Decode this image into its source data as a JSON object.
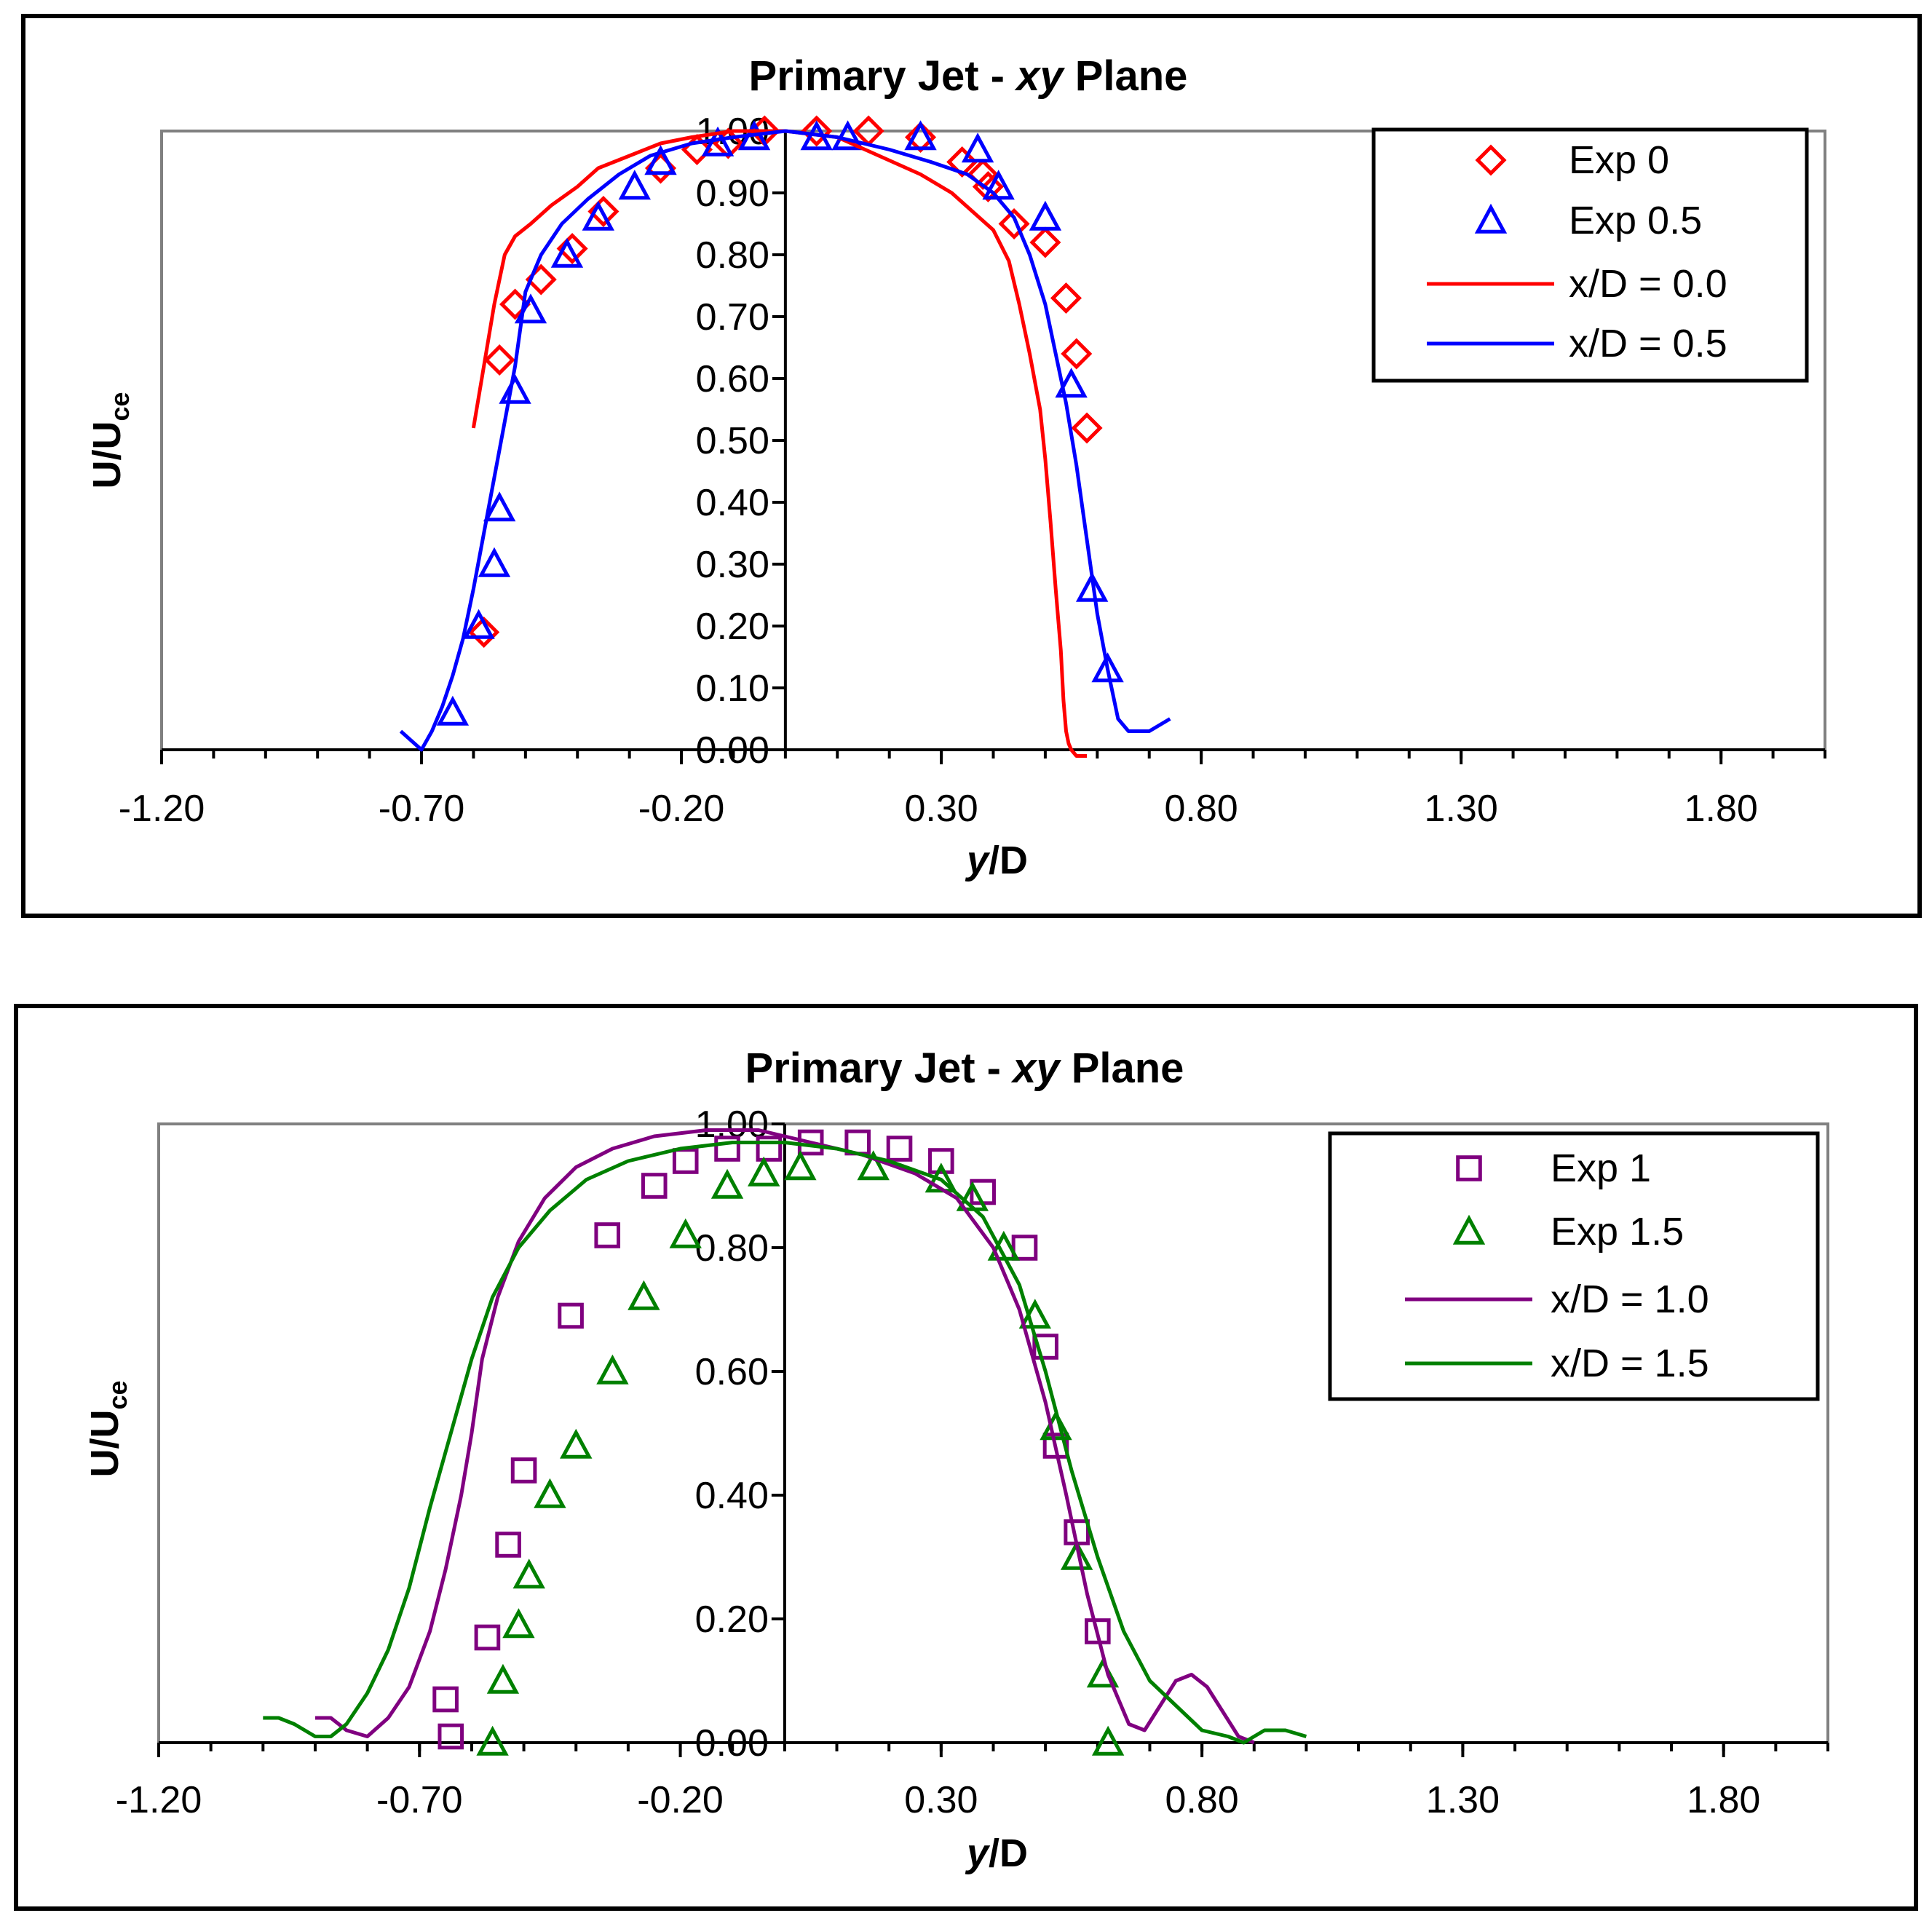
{
  "chart_data": [
    {
      "type": "line",
      "title": "Primary Jet - ",
      "title_italic": "xy",
      "title_suffix": " Plane",
      "xlabel_italic": "y",
      "xlabel_rest": "/D",
      "ylabel_main": "U/U",
      "ylabel_sub": "ce",
      "xlim": [
        -1.2,
        2.0
      ],
      "ylim": [
        0.0,
        1.0
      ],
      "x_ticks": [
        "-1.20",
        "-0.70",
        "-0.20",
        "0.30",
        "0.80",
        "1.30",
        "1.80"
      ],
      "x_tick_values": [
        -1.2,
        -0.7,
        -0.2,
        0.3,
        0.8,
        1.3,
        1.8
      ],
      "y_ticks": [
        "0.00",
        "0.10",
        "0.20",
        "0.30",
        "0.40",
        "0.50",
        "0.60",
        "0.70",
        "0.80",
        "0.90",
        "1.00"
      ],
      "y_tick_values": [
        0.0,
        0.1,
        0.2,
        0.3,
        0.4,
        0.5,
        0.6,
        0.7,
        0.8,
        0.9,
        1.0
      ],
      "y_axis_at_x": 0.0,
      "legend_position": "top-right",
      "series": [
        {
          "name": "Exp 0",
          "kind": "marker",
          "marker": "diamond",
          "color": "#ff0000",
          "x": [
            -0.58,
            -0.55,
            -0.52,
            -0.47,
            -0.41,
            -0.35,
            -0.24,
            -0.17,
            -0.11,
            -0.04,
            0.06,
            0.16,
            0.26,
            0.34,
            0.38,
            0.39,
            0.44,
            0.5,
            0.54,
            0.56,
            0.58
          ],
          "y": [
            0.19,
            0.63,
            0.72,
            0.76,
            0.81,
            0.87,
            0.94,
            0.97,
            0.98,
            1.0,
            1.0,
            1.0,
            0.99,
            0.95,
            0.93,
            0.91,
            0.85,
            0.82,
            0.73,
            0.64,
            0.52
          ]
        },
        {
          "name": "Exp 0.5",
          "kind": "marker",
          "marker": "triangle",
          "color": "#0000ff",
          "x": [
            -0.64,
            -0.59,
            -0.56,
            -0.55,
            -0.52,
            -0.49,
            -0.42,
            -0.36,
            -0.29,
            -0.24,
            -0.13,
            -0.06,
            0.06,
            0.12,
            0.26,
            0.37,
            0.41,
            0.5,
            0.55,
            0.59,
            0.62
          ],
          "y": [
            0.06,
            0.2,
            0.3,
            0.39,
            0.58,
            0.71,
            0.8,
            0.86,
            0.91,
            0.95,
            0.98,
            0.99,
            0.99,
            0.99,
            0.99,
            0.97,
            0.91,
            0.86,
            0.59,
            0.26,
            0.13
          ]
        },
        {
          "name": "x/D = 0.0",
          "kind": "line",
          "color": "#ff0000",
          "x": [
            -0.6,
            -0.58,
            -0.56,
            -0.54,
            -0.52,
            -0.49,
            -0.45,
            -0.4,
            -0.36,
            -0.3,
            -0.24,
            -0.18,
            -0.1,
            0.0,
            0.1,
            0.18,
            0.26,
            0.32,
            0.36,
            0.4,
            0.43,
            0.45,
            0.47,
            0.49,
            0.5,
            0.51,
            0.52,
            0.53,
            0.535,
            0.54,
            0.545,
            0.55,
            0.56,
            0.58
          ],
          "y": [
            0.52,
            0.62,
            0.72,
            0.8,
            0.83,
            0.85,
            0.88,
            0.91,
            0.94,
            0.96,
            0.98,
            0.99,
            1.0,
            1.0,
            0.99,
            0.96,
            0.93,
            0.9,
            0.87,
            0.84,
            0.79,
            0.72,
            0.64,
            0.55,
            0.47,
            0.37,
            0.26,
            0.16,
            0.08,
            0.03,
            0.01,
            0.0,
            -0.01,
            -0.01
          ]
        },
        {
          "name": "x/D = 0.5",
          "kind": "line",
          "color": "#0000ff",
          "x": [
            -0.74,
            -0.7,
            -0.68,
            -0.66,
            -0.64,
            -0.62,
            -0.6,
            -0.58,
            -0.56,
            -0.54,
            -0.52,
            -0.5,
            -0.47,
            -0.43,
            -0.38,
            -0.32,
            -0.26,
            -0.18,
            -0.1,
            0.0,
            0.1,
            0.2,
            0.28,
            0.35,
            0.4,
            0.44,
            0.47,
            0.5,
            0.52,
            0.54,
            0.56,
            0.58,
            0.6,
            0.62,
            0.64,
            0.66,
            0.7,
            0.74
          ],
          "y": [
            0.03,
            0.0,
            0.03,
            0.07,
            0.12,
            0.18,
            0.26,
            0.35,
            0.44,
            0.53,
            0.62,
            0.74,
            0.8,
            0.85,
            0.89,
            0.93,
            0.96,
            0.98,
            0.99,
            1.0,
            0.99,
            0.97,
            0.95,
            0.93,
            0.9,
            0.86,
            0.8,
            0.72,
            0.64,
            0.56,
            0.46,
            0.34,
            0.22,
            0.13,
            0.05,
            0.03,
            0.03,
            0.05
          ]
        }
      ]
    },
    {
      "type": "line",
      "title": "Primary Jet - ",
      "title_italic": "xy",
      "title_suffix": " Plane",
      "xlabel_italic": "y",
      "xlabel_rest": "/D",
      "ylabel_main": "U/U",
      "ylabel_sub": "ce",
      "xlim": [
        -1.2,
        2.0
      ],
      "ylim": [
        0.0,
        1.0
      ],
      "x_ticks": [
        "-1.20",
        "-0.70",
        "-0.20",
        "0.30",
        "0.80",
        "1.30",
        "1.80"
      ],
      "x_tick_values": [
        -1.2,
        -0.7,
        -0.2,
        0.3,
        0.8,
        1.3,
        1.8
      ],
      "y_ticks": [
        "0.00",
        "0.20",
        "0.40",
        "0.60",
        "0.80",
        "1.00"
      ],
      "y_tick_values": [
        0.0,
        0.2,
        0.4,
        0.6,
        0.8,
        1.0
      ],
      "y_axis_at_x": 0.0,
      "legend_position": "top-right",
      "series": [
        {
          "name": "Exp 1",
          "kind": "marker",
          "marker": "square",
          "color": "#7f007f",
          "x": [
            -0.65,
            -0.64,
            -0.57,
            -0.53,
            -0.5,
            -0.41,
            -0.34,
            -0.25,
            -0.19,
            -0.11,
            -0.03,
            0.05,
            0.14,
            0.22,
            0.3,
            0.38,
            0.46,
            0.5,
            0.52,
            0.56,
            0.6
          ],
          "y": [
            0.07,
            0.01,
            0.17,
            0.32,
            0.44,
            0.69,
            0.82,
            0.9,
            0.94,
            0.96,
            0.96,
            0.97,
            0.97,
            0.96,
            0.94,
            0.89,
            0.8,
            0.64,
            0.48,
            0.34,
            0.18
          ]
        },
        {
          "name": "Exp 1.5",
          "kind": "marker",
          "marker": "triangle",
          "color": "#008000",
          "x": [
            -0.56,
            -0.54,
            -0.51,
            -0.49,
            -0.45,
            -0.4,
            -0.33,
            -0.27,
            -0.19,
            -0.11,
            -0.04,
            0.03,
            0.17,
            0.3,
            0.36,
            0.42,
            0.48,
            0.52,
            0.56,
            0.61,
            0.62
          ],
          "y": [
            0.0,
            0.1,
            0.19,
            0.27,
            0.4,
            0.48,
            0.6,
            0.72,
            0.82,
            0.9,
            0.92,
            0.93,
            0.93,
            0.91,
            0.88,
            0.8,
            0.69,
            0.51,
            0.3,
            0.11,
            0.0
          ]
        },
        {
          "name": "x/D = 1.0",
          "kind": "line",
          "color": "#800080",
          "x": [
            -0.9,
            -0.87,
            -0.84,
            -0.8,
            -0.76,
            -0.72,
            -0.68,
            -0.65,
            -0.62,
            -0.6,
            -0.58,
            -0.55,
            -0.51,
            -0.46,
            -0.4,
            -0.33,
            -0.25,
            -0.15,
            -0.05,
            0.05,
            0.15,
            0.25,
            0.33,
            0.4,
            0.45,
            0.5,
            0.54,
            0.58,
            0.62,
            0.66,
            0.69,
            0.72,
            0.75,
            0.78,
            0.81,
            0.84,
            0.87,
            0.9
          ],
          "y": [
            0.04,
            0.04,
            0.02,
            0.01,
            0.04,
            0.09,
            0.18,
            0.28,
            0.4,
            0.5,
            0.62,
            0.72,
            0.81,
            0.88,
            0.93,
            0.96,
            0.98,
            0.99,
            0.99,
            0.97,
            0.95,
            0.92,
            0.88,
            0.8,
            0.7,
            0.55,
            0.4,
            0.24,
            0.11,
            0.03,
            0.02,
            0.06,
            0.1,
            0.11,
            0.09,
            0.05,
            0.01,
            0.0
          ]
        },
        {
          "name": "x/D = 1.5",
          "kind": "line",
          "color": "#008000",
          "x": [
            -1.0,
            -0.97,
            -0.94,
            -0.9,
            -0.87,
            -0.84,
            -0.8,
            -0.76,
            -0.72,
            -0.68,
            -0.64,
            -0.6,
            -0.56,
            -0.51,
            -0.45,
            -0.38,
            -0.3,
            -0.2,
            -0.1,
            0.0,
            0.1,
            0.2,
            0.3,
            0.38,
            0.45,
            0.5,
            0.55,
            0.6,
            0.65,
            0.7,
            0.75,
            0.8,
            0.85,
            0.88,
            0.92,
            0.96,
            1.0
          ],
          "y": [
            0.04,
            0.04,
            0.03,
            0.01,
            0.01,
            0.03,
            0.08,
            0.15,
            0.25,
            0.38,
            0.5,
            0.62,
            0.72,
            0.8,
            0.86,
            0.91,
            0.94,
            0.96,
            0.97,
            0.97,
            0.96,
            0.94,
            0.91,
            0.85,
            0.74,
            0.6,
            0.44,
            0.3,
            0.18,
            0.1,
            0.06,
            0.02,
            0.01,
            0.0,
            0.02,
            0.02,
            0.01
          ]
        }
      ]
    }
  ]
}
